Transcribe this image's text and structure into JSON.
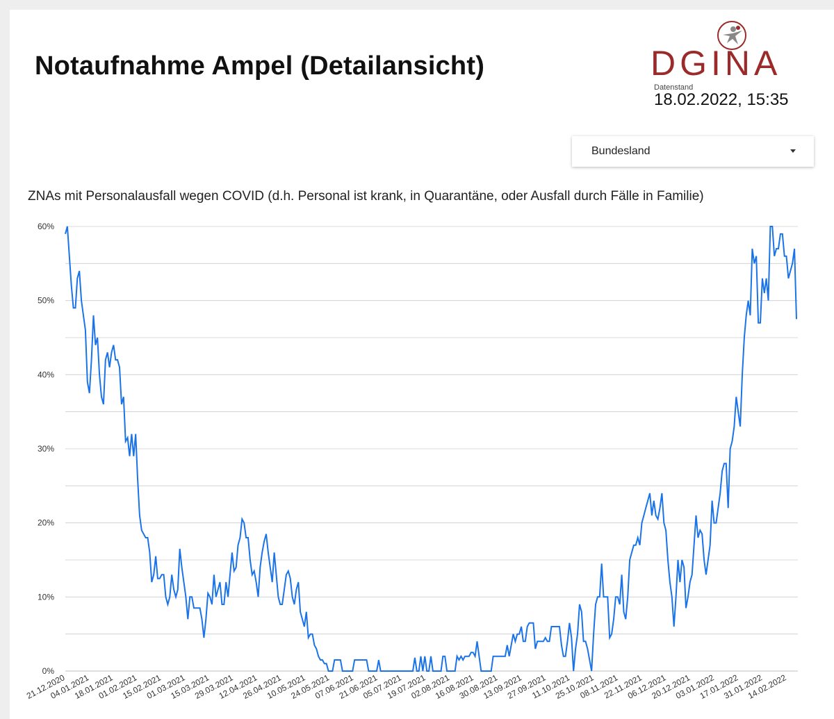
{
  "header": {
    "title": "Notaufnahme Ampel (Detailansicht)",
    "logo_text": "DGINA",
    "datenstand_label": "Datenstand",
    "datenstand_value": "18.02.2022, 15:35"
  },
  "filter": {
    "label": "Bundesland"
  },
  "colors": {
    "line": "#1a73e8",
    "grid": "#cccccc",
    "logo": "#9b2a2a"
  },
  "chart_data": {
    "type": "line",
    "title": "ZNAs mit Personalausfall wegen COVID (d.h. Personal ist krank, in Quarantäne, oder Ausfall durch Fälle in Familie)",
    "xlabel": "",
    "ylabel": "",
    "ylim": [
      0,
      60
    ],
    "y_ticks": [
      "0%",
      "10%",
      "20%",
      "30%",
      "40%",
      "50%",
      "60%"
    ],
    "grid": true,
    "x_tick_labels": [
      "21.12.2020",
      "04.01.2021",
      "18.01.2021",
      "01.02.2021",
      "15.02.2021",
      "01.03.2021",
      "15.03.2021",
      "29.03.2021",
      "12.04.2021",
      "26.04.2021",
      "10.05.2021",
      "24.05.2021",
      "07.06.2021",
      "21.06.2021",
      "05.07.2021",
      "19.07.2021",
      "02.08.2021",
      "16.08.2021",
      "30.08.2021",
      "13.09.2021",
      "27.09.2021",
      "11.10.2021",
      "25.10.2021",
      "08.11.2021",
      "22.11.2021",
      "06.12.2021",
      "20.12.2021",
      "03.01.2022",
      "17.01.2022",
      "31.01.2022",
      "14.02.2022"
    ],
    "series": [
      {
        "values": [
          59,
          60,
          56,
          52,
          49,
          49,
          53,
          54,
          50,
          48,
          46,
          39,
          37.5,
          42,
          48,
          44,
          45,
          40,
          37,
          36,
          42,
          43,
          41,
          43,
          44,
          42,
          42,
          41,
          36,
          37,
          31,
          31.5,
          29,
          32,
          29,
          32,
          26,
          21,
          19,
          18.5,
          18,
          18,
          16,
          12,
          13,
          15.5,
          12.5,
          12.5,
          13,
          13,
          10,
          9,
          10,
          13,
          11,
          10,
          11,
          16.5,
          14,
          12,
          10,
          7,
          10,
          10,
          8.5,
          8.5,
          8.5,
          8.5,
          7,
          4.5,
          7,
          10.5,
          10,
          9,
          13,
          10,
          11,
          12,
          9,
          9,
          12,
          10,
          13,
          16,
          13.5,
          14,
          17,
          18,
          20.5,
          20,
          18,
          18,
          15,
          13,
          13.5,
          12,
          10,
          14,
          16,
          17.5,
          18.5,
          16,
          14,
          12,
          16,
          13,
          10,
          9,
          9,
          11,
          13,
          13.5,
          12.5,
          10,
          9,
          11,
          12,
          8,
          7,
          6,
          8,
          4.5,
          5,
          5,
          3.5,
          3,
          2,
          1.5,
          1.5,
          1,
          1,
          0,
          0,
          0,
          1.5,
          1.5,
          1.5,
          1.5,
          0,
          0,
          0,
          0,
          0,
          0,
          1.5,
          1.5,
          1.5,
          1.5,
          1.5,
          1.5,
          1.5,
          0,
          0,
          0,
          0,
          0,
          1.5,
          0,
          0,
          0,
          0,
          0,
          0,
          0,
          0,
          0,
          0,
          0,
          0,
          0,
          0,
          0,
          0,
          0,
          1.8,
          0,
          0,
          2,
          0,
          2,
          0,
          0,
          2,
          0,
          0,
          0,
          0,
          0,
          2,
          2,
          0,
          0,
          0,
          0,
          0,
          2,
          1.5,
          2,
          1.5,
          2,
          2,
          2,
          2.5,
          2.5,
          2,
          4,
          2,
          0,
          0,
          0,
          0,
          0,
          0,
          2,
          2,
          2,
          2,
          2,
          2,
          2,
          3.5,
          2,
          3.5,
          5,
          4,
          5,
          5,
          6,
          4,
          4,
          6,
          6.5,
          6.5,
          6.5,
          3,
          4,
          4,
          4,
          4,
          4.5,
          4,
          4,
          6,
          6,
          6,
          6,
          6,
          3.5,
          2,
          2,
          4,
          6.5,
          4.5,
          0,
          3,
          5,
          9,
          8,
          4,
          4,
          3,
          1.5,
          0,
          5,
          9,
          10,
          10,
          14.5,
          10,
          10,
          10,
          4.5,
          5,
          7,
          10,
          10,
          9,
          13,
          8,
          7,
          10,
          15,
          16,
          17,
          17,
          18,
          17,
          20,
          21,
          22,
          23,
          24,
          21,
          23,
          21,
          20.5,
          22,
          24,
          20,
          19,
          15,
          12,
          10,
          6,
          10,
          15,
          12,
          15,
          14,
          8.5,
          10,
          12,
          13,
          17,
          21,
          18,
          19,
          18.5,
          15,
          13,
          15,
          17,
          23,
          20,
          20,
          22,
          24,
          27,
          28,
          28,
          22,
          30,
          31,
          33,
          37,
          35,
          33,
          40,
          45,
          48,
          50,
          48,
          57,
          55,
          56,
          47,
          47,
          53,
          51,
          53,
          50,
          60,
          60,
          56,
          57,
          57,
          59,
          59,
          56,
          56,
          53,
          54,
          55,
          57,
          47.5
        ]
      }
    ]
  }
}
